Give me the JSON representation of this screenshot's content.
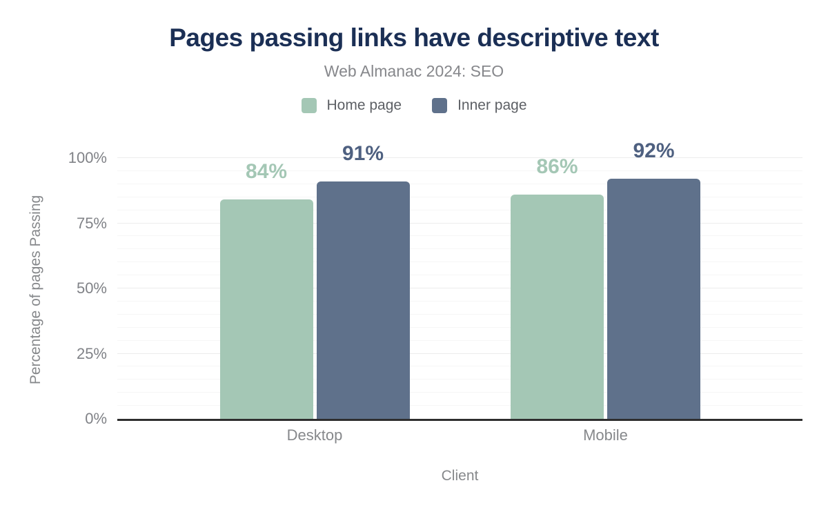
{
  "header": {
    "title": "Pages passing links have descriptive text",
    "subtitle": "Web Almanac 2024: SEO"
  },
  "legend": {
    "items": [
      {
        "label": "Home page",
        "color": "#a4c7b5"
      },
      {
        "label": "Inner page",
        "color": "#5f718b"
      }
    ]
  },
  "chart_data": {
    "type": "bar",
    "title": "Pages passing links have descriptive text",
    "subtitle": "Web Almanac 2024: SEO",
    "categories": [
      "Desktop",
      "Mobile"
    ],
    "series": [
      {
        "name": "Home page",
        "values": [
          84,
          86
        ],
        "labels": [
          "84%",
          "86%"
        ],
        "color": "#a4c7b5",
        "label_color": "#a4c7b5"
      },
      {
        "name": "Inner page",
        "values": [
          91,
          92
        ],
        "labels": [
          "91%",
          "92%"
        ],
        "color": "#5f718b",
        "label_color": "#4e6080"
      }
    ],
    "xlabel": "Client",
    "ylabel": "Percentage of pages Passing",
    "ylim": [
      0,
      100
    ],
    "yticks": [
      {
        "value": 0,
        "label": "0%"
      },
      {
        "value": 25,
        "label": "25%"
      },
      {
        "value": 50,
        "label": "50%"
      },
      {
        "value": 75,
        "label": "75%"
      },
      {
        "value": 100,
        "label": "100%"
      }
    ],
    "grid": {
      "horizontal": true,
      "minor_step_pct": 5,
      "major_step_pct": 25
    },
    "legend_position": "top",
    "colors": {
      "title": "#1b2f55",
      "subtitle": "#86878b",
      "axis_labels": "#86888b",
      "axis_line": "#2e2e2e"
    }
  }
}
